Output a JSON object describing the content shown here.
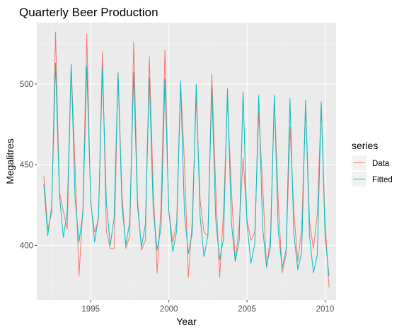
{
  "chart_data": {
    "type": "line",
    "title": "Quarterly Beer Production",
    "xlabel": "Year",
    "ylabel": "Megalitres",
    "xlim": [
      1991.55,
      2010.7
    ],
    "ylim": [
      366,
      538
    ],
    "x_ticks": [
      1995,
      2000,
      2005,
      2010
    ],
    "x_tick_labels": [
      "1995",
      "2000",
      "2005",
      "2010"
    ],
    "y_ticks": [
      400,
      450,
      500
    ],
    "y_tick_labels": [
      "400",
      "450",
      "500"
    ],
    "grid": true,
    "legend": {
      "title": "series",
      "placement": "right"
    },
    "x_start": 1992.0,
    "x_step": 0.25,
    "series": [
      {
        "name": "Data",
        "color": "#F8766D",
        "values": [
          443,
          410,
          420,
          532,
          433,
          421,
          410,
          512,
          449,
          381,
          423,
          531,
          426,
          408,
          416,
          520,
          409,
          398,
          398,
          507,
          432,
          398,
          406,
          526,
          428,
          397,
          403,
          517,
          435,
          383,
          424,
          521,
          421,
          402,
          414,
          500,
          451,
          380,
          416,
          492,
          428,
          408,
          406,
          506,
          435,
          380,
          421,
          490,
          435,
          390,
          412,
          454,
          416,
          403,
          408,
          482,
          438,
          386,
          405,
          491,
          427,
          383,
          394,
          473,
          420,
          390,
          410,
          488,
          415,
          398,
          419,
          488,
          414,
          374
        ]
      },
      {
        "name": "Fitted",
        "color": "#00BFC4",
        "values": [
          438,
          406,
          424,
          513,
          431,
          405,
          421,
          512,
          429,
          402,
          420,
          511,
          428,
          402,
          418,
          510,
          427,
          400,
          417,
          507,
          425,
          400,
          415,
          507,
          424,
          399,
          413,
          504,
          422,
          397,
          411,
          503,
          421,
          396,
          409,
          502,
          419,
          395,
          408,
          500,
          418,
          393,
          406,
          498,
          416,
          391,
          404,
          497,
          414,
          390,
          403,
          495,
          413,
          389,
          401,
          493,
          411,
          387,
          399,
          493,
          409,
          386,
          397,
          491,
          407,
          385,
          396,
          490,
          406,
          383,
          394,
          489,
          405,
          381
        ]
      }
    ]
  }
}
